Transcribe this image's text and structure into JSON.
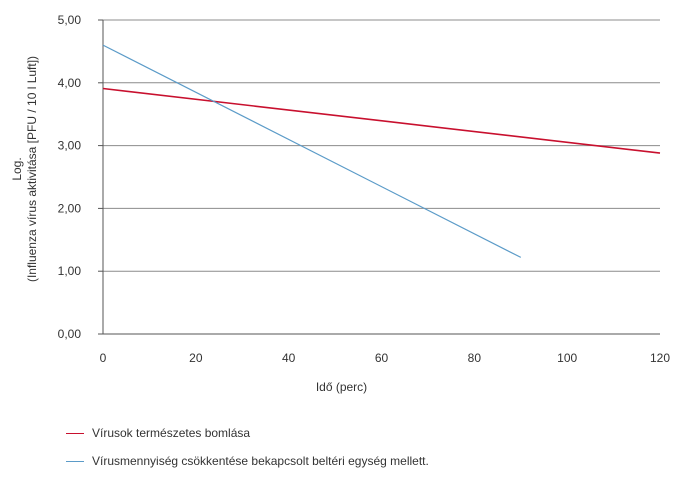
{
  "chart_data": {
    "type": "line",
    "title": "",
    "xlabel": "Idő (perc)",
    "ylabel_lines": [
      "Log.",
      "(Influenza vírus aktivitása [PFU / 10 l Luft])"
    ],
    "xlim": [
      0,
      120
    ],
    "ylim": [
      0,
      5
    ],
    "x_ticks": [
      "0",
      "20",
      "40",
      "60",
      "80",
      "100",
      "120"
    ],
    "y_ticks": [
      "0,00",
      "1,00",
      "2,00",
      "3,00",
      "4,00",
      "5,00"
    ],
    "grid": "horizontal",
    "legend_position": "bottom-left",
    "series": [
      {
        "name": "Vírusok természetes bomlása",
        "color": "#c8102e",
        "points": [
          [
            0,
            3.91
          ],
          [
            120,
            2.88
          ]
        ]
      },
      {
        "name": "Vírusmennyiség csökkentése bekapcsolt beltéri egység mellett.",
        "color": "#5b9bc8",
        "points": [
          [
            0,
            4.6
          ],
          [
            90,
            1.22
          ]
        ]
      }
    ]
  }
}
